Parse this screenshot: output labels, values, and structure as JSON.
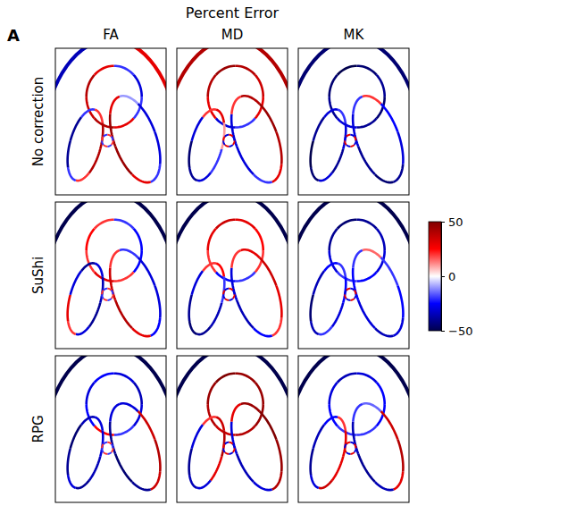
{
  "chart_data": {
    "type": "heatmap",
    "title": "Percent Error",
    "label": "A",
    "columns": [
      "FA",
      "MD",
      "MK"
    ],
    "rows": [
      "No correction",
      "SuShi",
      "RPG"
    ],
    "colorbar": {
      "range": [
        -50,
        50
      ],
      "ticks": [
        50,
        0,
        {
          "value": -50,
          "label": "−50"
        }
      ]
    },
    "cells": [
      [
        {
          "rims": [
            [
              -20,
              30,
              40,
              35,
              40,
              30,
              -20,
              -30
            ],
            [
              40,
              20,
              -20,
              -40,
              -40,
              -20,
              20,
              40
            ],
            [
              -30,
              -20,
              30,
              45,
              45,
              30,
              -10,
              -30
            ],
            [
              20,
              -20,
              20,
              -20,
              20,
              -20,
              20,
              -20
            ]
          ],
          "skull": [
            -35,
            30
          ]
        },
        {
          "rims": [
            [
              30,
              -20,
              -30,
              30,
              40,
              45,
              40,
              35
            ],
            [
              -20,
              -30,
              -40,
              -45,
              -30,
              20,
              30,
              10
            ],
            [
              40,
              30,
              -20,
              -30,
              -30,
              20,
              40,
              45
            ],
            [
              30,
              -30,
              30,
              -30,
              30,
              -30,
              30,
              -30
            ]
          ],
          "skull": [
            40,
            40
          ]
        },
        {
          "rims": [
            [
              -45,
              -40,
              -30,
              -40,
              -45,
              -50,
              -45,
              -40
            ],
            [
              -40,
              -30,
              -45,
              -50,
              -40,
              -30,
              -20,
              -30
            ],
            [
              -30,
              -40,
              -45,
              -40,
              -30,
              -20,
              20,
              -25
            ],
            [
              -30,
              30,
              -30,
              30,
              -30,
              30,
              -30,
              30
            ]
          ],
          "skull": [
            -45,
            -45
          ]
        }
      ],
      [
        {
          "rims": [
            [
              -25,
              20,
              30,
              20,
              25,
              20,
              -20,
              -25
            ],
            [
              -40,
              -30,
              20,
              30,
              -30,
              -40,
              -30,
              -35
            ],
            [
              -30,
              -25,
              30,
              40,
              35,
              20,
              -20,
              -30
            ],
            [
              20,
              -20,
              20,
              -20,
              20,
              -20,
              20,
              -20
            ]
          ],
          "skull": [
            -50,
            -50
          ]
        },
        {
          "rims": [
            [
              20,
              -20,
              -25,
              20,
              30,
              35,
              30,
              25
            ],
            [
              -35,
              -40,
              -45,
              -40,
              -30,
              20,
              25,
              -20
            ],
            [
              30,
              20,
              -25,
              -35,
              -30,
              20,
              30,
              35
            ],
            [
              30,
              -30,
              30,
              -30,
              30,
              -30,
              30,
              -30
            ]
          ],
          "skull": [
            -50,
            -50
          ]
        },
        {
          "rims": [
            [
              -30,
              -25,
              -20,
              -30,
              -40,
              -45,
              -40,
              -35
            ],
            [
              -30,
              -20,
              -35,
              -45,
              -35,
              -25,
              -20,
              -25
            ],
            [
              -25,
              -30,
              -35,
              -30,
              -25,
              -20,
              15,
              -20
            ],
            [
              -30,
              30,
              -30,
              30,
              -30,
              30,
              -30,
              30
            ]
          ],
          "skull": [
            -50,
            -50
          ]
        }
      ],
      [
        {
          "rims": [
            [
              -30,
              -20,
              25,
              -25,
              -30,
              -25,
              -30,
              -35
            ],
            [
              -35,
              -40,
              -30,
              -40,
              -45,
              -35,
              -30,
              -30
            ],
            [
              40,
              35,
              -40,
              -45,
              -40,
              -30,
              -30,
              35
            ],
            [
              20,
              -20,
              20,
              -20,
              20,
              -20,
              20,
              -20
            ]
          ],
          "skull": [
            -50,
            -50
          ]
        },
        {
          "rims": [
            [
              45,
              40,
              35,
              40,
              45,
              50,
              45,
              45
            ],
            [
              30,
              -30,
              -35,
              -40,
              -30,
              20,
              35,
              40
            ],
            [
              45,
              40,
              -30,
              -35,
              -30,
              30,
              45,
              50
            ],
            [
              30,
              -30,
              30,
              -30,
              30,
              -30,
              30,
              -30
            ]
          ],
          "skull": [
            -50,
            -50
          ]
        },
        {
          "rims": [
            [
              -25,
              -20,
              -20,
              -25,
              -30,
              -35,
              -30,
              -25
            ],
            [
              30,
              35,
              -30,
              -40,
              -35,
              -25,
              20,
              30
            ],
            [
              40,
              30,
              -35,
              -40,
              -35,
              -20,
              -15,
              35
            ],
            [
              -30,
              30,
              -30,
              30,
              -30,
              30,
              -30,
              30
            ]
          ],
          "skull": [
            -50,
            -50
          ]
        }
      ]
    ]
  }
}
